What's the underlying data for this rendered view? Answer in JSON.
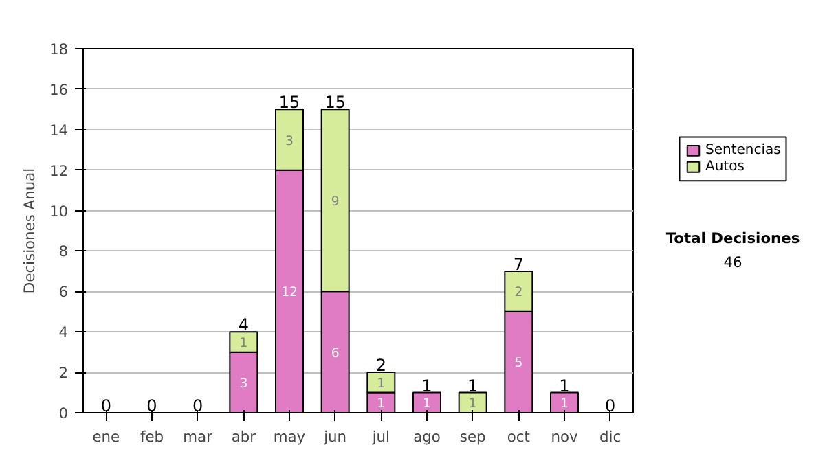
{
  "chart_data": {
    "type": "bar",
    "stacked": true,
    "ylabel": "Decisiones Anual",
    "categories": [
      "ene",
      "feb",
      "mar",
      "abr",
      "may",
      "jun",
      "jul",
      "ago",
      "sep",
      "oct",
      "nov",
      "dic"
    ],
    "series": [
      {
        "name": "Sentencias",
        "color": "#e07cc4",
        "values": [
          0,
          0,
          0,
          3,
          12,
          6,
          1,
          1,
          0,
          5,
          1,
          0
        ],
        "value_labels": [
          null,
          null,
          null,
          "3",
          "12",
          "6",
          "1",
          "1",
          null,
          "5",
          "1",
          null
        ]
      },
      {
        "name": "Autos",
        "color": "#d6ec9a",
        "values": [
          0,
          0,
          0,
          1,
          3,
          9,
          1,
          0,
          1,
          2,
          0,
          0
        ],
        "value_labels": [
          null,
          null,
          null,
          "1",
          "3",
          "9",
          "1",
          null,
          "1",
          "2",
          null,
          null
        ]
      }
    ],
    "totals": [
      "0",
      "0",
      "0",
      "4",
      "15",
      "15",
      "2",
      "1",
      "1",
      "7",
      "1",
      "0"
    ],
    "ylim": [
      0,
      18
    ],
    "yticks": [
      0,
      2,
      4,
      6,
      8,
      10,
      12,
      14,
      16,
      18
    ],
    "grid": "y",
    "legend": "right",
    "annotations": [
      "Total Decisiones",
      "46"
    ]
  }
}
